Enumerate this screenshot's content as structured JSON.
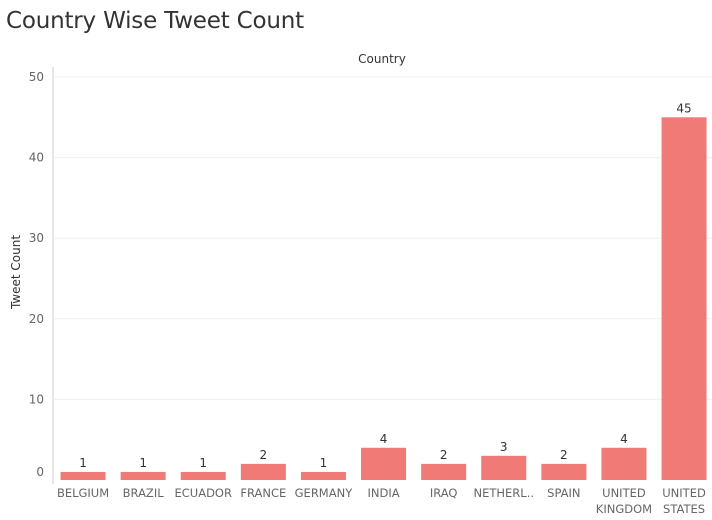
{
  "page": {
    "title": "Country Wise Tweet Count"
  },
  "colors": {
    "bar": "#f07b76",
    "gridline": "#efefef",
    "axis": "#cccccc"
  },
  "chart_data": {
    "type": "bar",
    "title": "Country Wise Tweet Count",
    "xlabel": "Country",
    "ylabel": "Tweet Count",
    "categories": [
      "BELGIUM",
      "BRAZIL",
      "ECUADOR",
      "FRANCE",
      "GERMANY",
      "INDIA",
      "IRAQ",
      "NETHERL..",
      "SPAIN",
      "UNITED KINGDOM",
      "UNITED STATES"
    ],
    "values": [
      1,
      1,
      1,
      2,
      1,
      4,
      2,
      3,
      2,
      4,
      45
    ],
    "ylim": [
      0,
      50
    ],
    "yticks": [
      0,
      10,
      20,
      30,
      40,
      50
    ],
    "grid": true,
    "data_labels": true,
    "legend": "none"
  }
}
